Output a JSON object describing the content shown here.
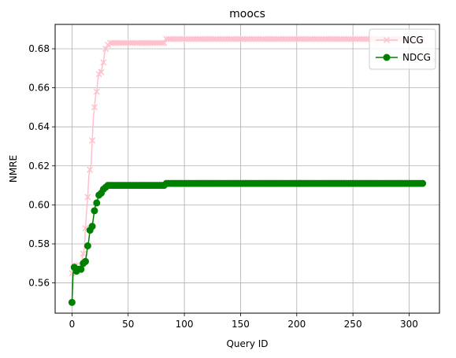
{
  "chart_data": {
    "type": "line",
    "title": "moocs",
    "xlabel": "Query ID",
    "ylabel": "NMRE",
    "xlim": [
      -15,
      327
    ],
    "ylim": [
      0.5445,
      0.6925
    ],
    "xticks": [
      0,
      50,
      100,
      150,
      200,
      250,
      300
    ],
    "yticks": [
      0.56,
      0.58,
      0.6,
      0.62,
      0.64,
      0.66,
      0.68
    ],
    "ytick_labels": [
      "0.56",
      "0.58",
      "0.60",
      "0.62",
      "0.64",
      "0.66",
      "0.68"
    ],
    "grid": true,
    "legend_position": "top-right",
    "x": [
      0,
      1,
      2,
      3,
      4,
      5,
      6,
      7,
      8,
      9,
      10,
      11,
      12,
      13,
      14,
      15,
      16,
      17,
      18,
      19,
      20,
      21,
      22,
      23,
      24,
      25,
      26,
      27,
      28,
      29,
      30,
      31,
      32,
      33,
      34,
      35,
      40,
      45,
      50,
      55,
      60,
      65,
      70,
      75,
      80,
      82,
      83,
      85,
      90,
      100,
      120,
      140,
      160,
      180,
      200,
      220,
      240,
      260,
      280,
      300,
      312
    ],
    "series": [
      {
        "name": "NCG",
        "color": "#ffc0cb",
        "marker": "x",
        "values": [
          0.565,
          0.568,
          0.569,
          0.568,
          0.569,
          0.567,
          0.568,
          0.569,
          0.567,
          0.572,
          0.575,
          0.578,
          0.588,
          0.597,
          0.604,
          0.615,
          0.618,
          0.621,
          0.633,
          0.644,
          0.65,
          0.656,
          0.658,
          0.664,
          0.667,
          0.669,
          0.668,
          0.671,
          0.673,
          0.678,
          0.68,
          0.681,
          0.682,
          0.683,
          0.683,
          0.683,
          0.683,
          0.683,
          0.683,
          0.683,
          0.683,
          0.683,
          0.683,
          0.683,
          0.683,
          0.683,
          0.685,
          0.685,
          0.685,
          0.685,
          0.685,
          0.685,
          0.685,
          0.685,
          0.685,
          0.685,
          0.685,
          0.685,
          0.685,
          0.685,
          0.685
        ]
      },
      {
        "name": "NDCG",
        "color": "#008000",
        "marker": "o",
        "values": [
          0.55,
          0.565,
          0.568,
          0.566,
          0.566,
          0.567,
          0.567,
          0.566,
          0.567,
          0.566,
          0.57,
          0.57,
          0.571,
          0.575,
          0.579,
          0.582,
          0.587,
          0.588,
          0.589,
          0.593,
          0.597,
          0.6,
          0.601,
          0.603,
          0.605,
          0.606,
          0.606,
          0.607,
          0.608,
          0.609,
          0.609,
          0.61,
          0.61,
          0.61,
          0.61,
          0.61,
          0.61,
          0.61,
          0.61,
          0.61,
          0.61,
          0.61,
          0.61,
          0.61,
          0.61,
          0.61,
          0.611,
          0.611,
          0.611,
          0.611,
          0.611,
          0.611,
          0.611,
          0.611,
          0.611,
          0.611,
          0.611,
          0.611,
          0.611,
          0.611,
          0.611
        ]
      }
    ]
  }
}
